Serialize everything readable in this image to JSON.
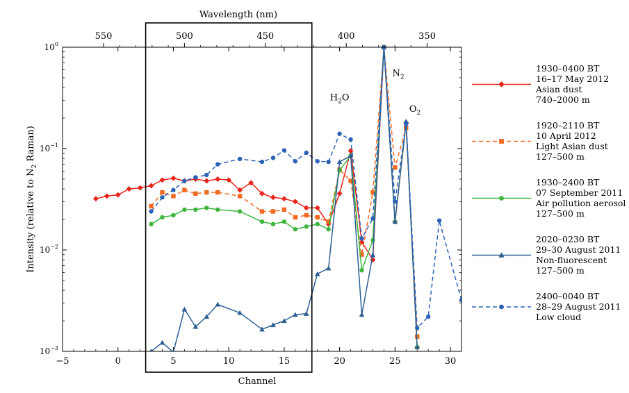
{
  "chart_data": {
    "type": "line",
    "ylabel": "Intensity (relative to N2 Raman)",
    "ylabel_main": "Intensity (relative to N",
    "ylabel_sub": "2",
    "ylabel_end": " Raman)",
    "xlabel": "Channel",
    "top_axis_label": "Wavelength (nm)",
    "xlim": [
      -5,
      31
    ],
    "ylim": [
      0.001,
      1
    ],
    "y_scale": "log",
    "x_ticks": [
      -5,
      0,
      5,
      10,
      15,
      20,
      25,
      30
    ],
    "x_tick_labels": [
      "−5",
      "0",
      "5",
      "10",
      "15",
      "20",
      "25",
      "30"
    ],
    "top_ticks": [
      {
        "channel": -1.3,
        "label": "550"
      },
      {
        "channel": 6.0,
        "label": "500"
      },
      {
        "channel": 13.3,
        "label": "450"
      },
      {
        "channel": 20.6,
        "label": "400"
      },
      {
        "channel": 27.9,
        "label": "350"
      }
    ],
    "y_ticks": [
      {
        "value": 0.001,
        "base": "10",
        "exp": "−3"
      },
      {
        "value": 0.01,
        "base": "10",
        "exp": "−2"
      },
      {
        "value": 0.1,
        "base": "10",
        "exp": "−1"
      },
      {
        "value": 1,
        "base": "10",
        "exp": "0"
      }
    ],
    "highlight_box": {
      "x_from": 2.5,
      "x_to": 17.5
    },
    "annotations": [
      {
        "main": "H",
        "sub": "2",
        "tail": "O",
        "x": 20,
        "y": 0.3
      },
      {
        "main": "N",
        "sub": "2",
        "tail": "",
        "x": 25.3,
        "y": 0.52
      },
      {
        "main": "O",
        "sub": "2",
        "tail": "",
        "x": 26.8,
        "y": 0.23
      }
    ],
    "series": [
      {
        "name": "1930–0400 BT 16–17 May 2012 Asian dust 740–2000 m",
        "legend_lines": [
          "1930–0400 BT",
          "16–17 May 2012",
          "Asian dust",
          "740–2000 m"
        ],
        "color": "#e8251b",
        "marker": "diamond",
        "dash": "solid",
        "x": [
          -2,
          -1,
          0,
          1,
          2,
          3,
          4,
          5,
          6,
          7,
          8,
          9,
          10,
          11,
          12,
          13,
          14,
          15,
          16,
          17,
          18,
          19,
          20,
          21,
          22,
          23,
          24,
          25,
          26,
          27
        ],
        "y": [
          0.032,
          0.034,
          0.035,
          0.04,
          0.041,
          0.043,
          0.049,
          0.051,
          0.048,
          0.05,
          0.048,
          0.05,
          0.049,
          0.039,
          0.046,
          0.036,
          0.033,
          0.032,
          0.03,
          0.026,
          0.026,
          0.018,
          0.036,
          0.095,
          0.012,
          0.008,
          1.0,
          0.019,
          0.18,
          0.0011
        ]
      },
      {
        "name": "1920–2110 BT 10 April 2012 Light Asian dust 127–500 m",
        "legend_lines": [
          "1920–2110 BT",
          "10 April 2012",
          "Light Asian dust",
          "127–500 m"
        ],
        "color": "#f26a22",
        "marker": "square",
        "dash": "dashed",
        "x": [
          3,
          4,
          5,
          6,
          7,
          8,
          9,
          11,
          13,
          14,
          15,
          16,
          17,
          18,
          19,
          20,
          21,
          22,
          23,
          24,
          25,
          26,
          27
        ],
        "y": [
          0.027,
          0.037,
          0.034,
          0.039,
          0.036,
          0.037,
          0.037,
          0.034,
          0.024,
          0.024,
          0.025,
          0.021,
          0.022,
          0.021,
          0.019,
          0.062,
          0.048,
          0.009,
          0.037,
          1.0,
          0.065,
          0.16,
          0.0014
        ]
      },
      {
        "name": "1930–2400 BT 07 September 2011 Air pollution aerosol 127–500 m",
        "legend_lines": [
          "1930–2400 BT",
          "07 September 2011",
          "Air pollution aerosol",
          "127–500 m"
        ],
        "color": "#3db53d",
        "marker": "circle",
        "dash": "solid",
        "x": [
          3,
          4,
          5,
          6,
          7,
          8,
          9,
          11,
          13,
          14,
          15,
          16,
          17,
          18,
          19,
          20,
          21,
          22,
          23,
          24,
          25,
          26,
          27
        ],
        "y": [
          0.018,
          0.021,
          0.022,
          0.025,
          0.025,
          0.026,
          0.025,
          0.024,
          0.019,
          0.018,
          0.019,
          0.016,
          0.017,
          0.018,
          0.016,
          0.061,
          0.085,
          0.0063,
          0.0125,
          1.0,
          0.019,
          0.18,
          0.0011
        ]
      },
      {
        "name": "2020–0230 BT 29–30 August 2011 Non-fluorescent 127–500 m",
        "legend_lines": [
          "2020–0230 BT",
          "29–30 August 2011",
          "Non-fluorescent",
          "127–500 m"
        ],
        "color": "#2d5f94",
        "marker": "triangle",
        "dash": "solid",
        "x": [
          3,
          4,
          5,
          6,
          7,
          8,
          9,
          11,
          13,
          14,
          15,
          16,
          17,
          18,
          19,
          20,
          21,
          22,
          23,
          24,
          25,
          26,
          27
        ],
        "y": [
          0.001,
          0.00122,
          0.00098,
          0.0026,
          0.00175,
          0.0022,
          0.0029,
          0.0024,
          0.00165,
          0.00182,
          0.002,
          0.0023,
          0.00235,
          0.0058,
          0.0066,
          0.074,
          0.085,
          0.0023,
          0.0089,
          1.0,
          0.019,
          0.185,
          0.0011
        ]
      },
      {
        "name": "2400–0040 BT 28–29 August 2011 Low cloud",
        "legend_lines": [
          "2400–0040 BT",
          "28–29 August 2011",
          "Low cloud"
        ],
        "color": "#2a62b8",
        "marker": "circle",
        "dash": "dashed",
        "x": [
          3,
          4,
          5,
          6,
          7,
          8,
          9,
          11,
          13,
          14,
          15,
          16,
          17,
          18,
          19,
          20,
          21,
          22,
          23,
          24,
          25,
          26,
          27,
          28,
          29,
          31
        ],
        "y": [
          0.024,
          0.033,
          0.039,
          0.048,
          0.052,
          0.055,
          0.07,
          0.079,
          0.074,
          0.081,
          0.096,
          0.075,
          0.091,
          0.075,
          0.074,
          0.14,
          0.123,
          0.013,
          0.0205,
          1.0,
          0.03,
          0.175,
          0.0017,
          0.0022,
          0.0195,
          0.0032
        ]
      }
    ]
  }
}
